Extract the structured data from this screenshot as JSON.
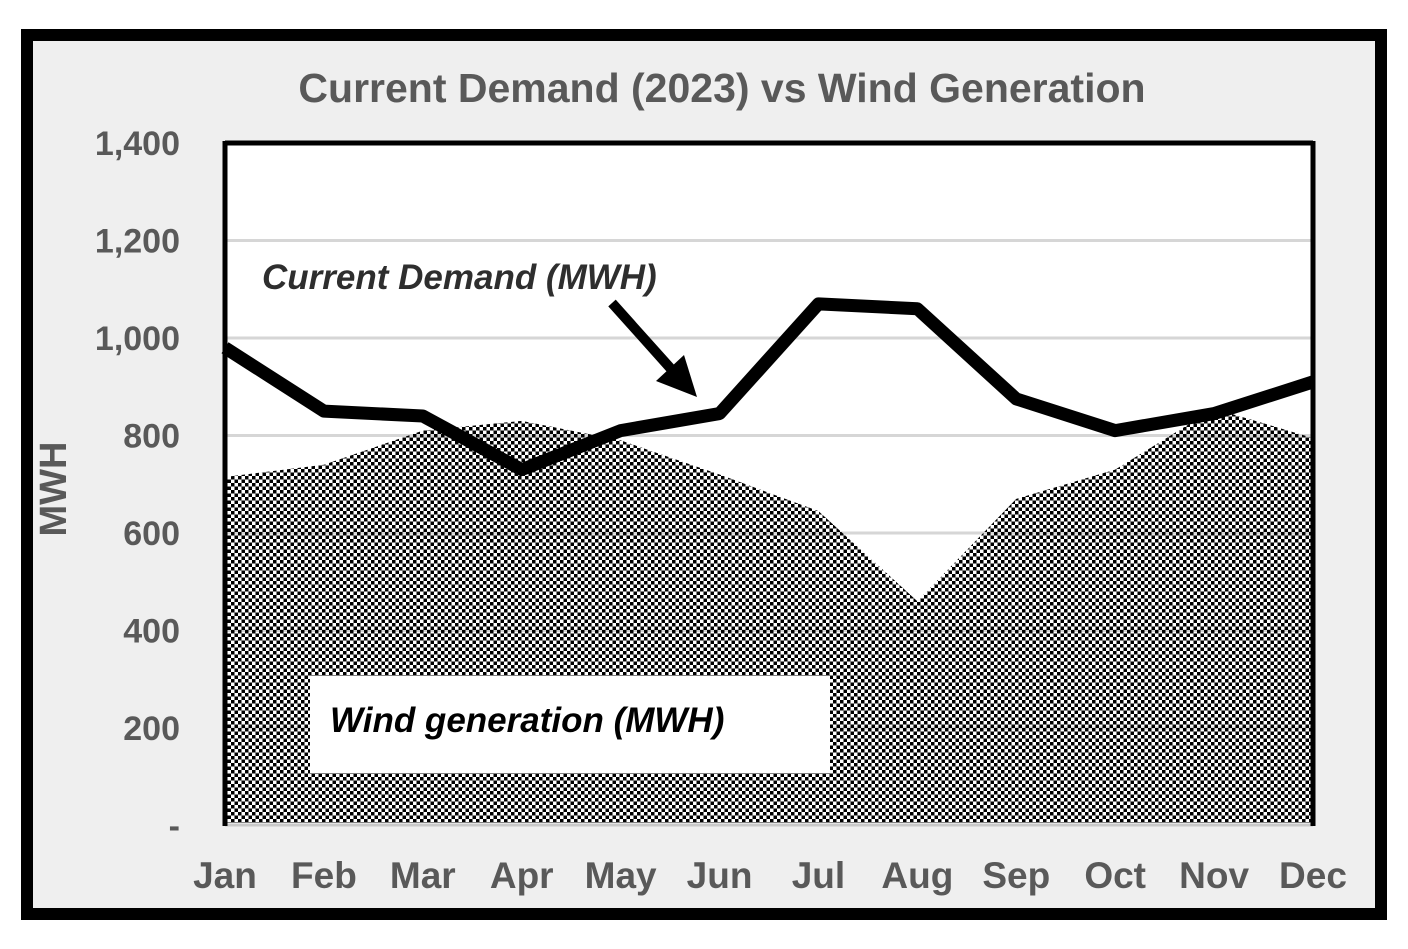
{
  "title": "Current Demand (2023) vs Wind Generation",
  "y_axis": {
    "label": "MWH"
  },
  "annotations": {
    "demand_label": "Current Demand (MWH)",
    "wind_label": "Wind generation (MWH)"
  },
  "colors": {
    "frame_border": "#000000",
    "canvas_background": "#efefef",
    "plot_background": "#ffffff",
    "gridline": "#d6d6d6",
    "demand_line": "#000000",
    "text_gray": "#595959"
  },
  "chart_data": {
    "type": "combo",
    "categories": [
      "Jan",
      "Feb",
      "Mar",
      "Apr",
      "May",
      "Jun",
      "Jul",
      "Aug",
      "Sep",
      "Oct",
      "Nov",
      "Dec"
    ],
    "series": [
      {
        "name": "Current Demand (MWH)",
        "type": "line",
        "values": [
          980,
          850,
          840,
          730,
          810,
          845,
          1070,
          1060,
          875,
          810,
          845,
          910
        ]
      },
      {
        "name": "Wind generation (MWH)",
        "type": "area",
        "fill": "black-white checker pattern",
        "values": [
          715,
          740,
          810,
          830,
          790,
          720,
          645,
          460,
          670,
          730,
          855,
          795
        ]
      }
    ],
    "title": "Current Demand (2023) vs Wind Generation",
    "xlabel": "",
    "ylabel": "MWH",
    "ylim": [
      0,
      1400
    ],
    "tick_interval": 200,
    "tick_values": [
      1400,
      1200,
      1000,
      800,
      600,
      400,
      200,
      0
    ],
    "tick_labels": [
      "1,400",
      "1,200",
      "1,000",
      "800",
      "600",
      "400",
      "200",
      "-"
    ],
    "grid": true,
    "legend_position": "none (in-plot text callouts)"
  }
}
